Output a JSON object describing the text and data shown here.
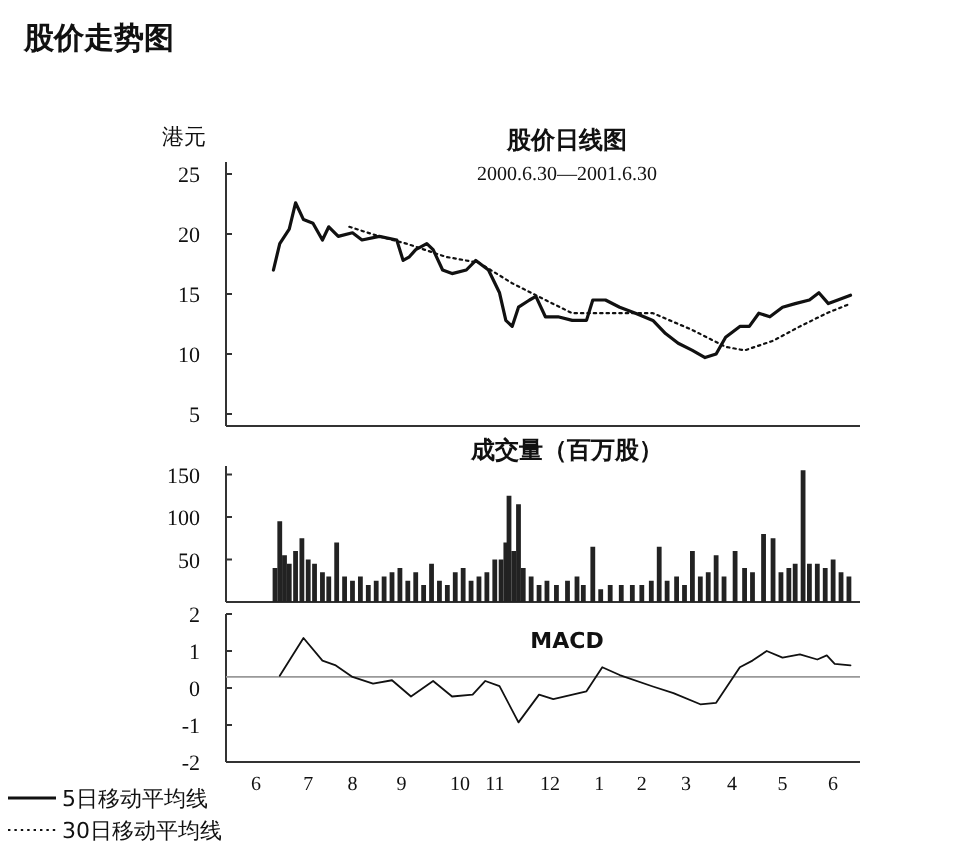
{
  "chart_data": [
    {
      "type": "line",
      "title": "股价日线图",
      "subtitle": "2000.6.30—2001.6.30",
      "ylabel": "港元",
      "annotations": [
        "股价走势图"
      ],
      "xlim": [
        "2000-05-31",
        "2001-07-06"
      ],
      "ylim": [
        4,
        26
      ],
      "yticks": [
        5,
        10,
        15,
        20,
        25
      ],
      "tick_labels": "y",
      "legend": "bottom left",
      "series": [
        {
          "name": "5日移动平均线",
          "color": "#111111",
          "line_style": "solid",
          "x": [
            "2000-06-30",
            "2000-07-04",
            "2000-07-10",
            "2000-07-14",
            "2000-07-19",
            "2000-07-25",
            "2000-07-31",
            "2000-08-04",
            "2000-08-10",
            "2000-08-19",
            "2000-08-25",
            "2000-09-05",
            "2000-09-16",
            "2000-09-20",
            "2000-09-24",
            "2000-09-28",
            "2000-10-05",
            "2000-10-09",
            "2000-10-15",
            "2000-10-21",
            "2000-10-30",
            "2000-11-05",
            "2000-11-13",
            "2000-11-20",
            "2000-11-24",
            "2000-11-28",
            "2000-12-02",
            "2000-12-09",
            "2000-12-13",
            "2000-12-19",
            "2000-12-27",
            "2001-01-05",
            "2001-01-14",
            "2001-01-18",
            "2001-01-26",
            "2001-02-04",
            "2001-02-14",
            "2001-02-25",
            "2001-03-05",
            "2001-03-13",
            "2001-03-22",
            "2001-03-30",
            "2001-04-06",
            "2001-04-12",
            "2001-04-21",
            "2001-04-27",
            "2001-05-03",
            "2001-05-10",
            "2001-05-18",
            "2001-05-26",
            "2001-06-04",
            "2001-06-10",
            "2001-06-16",
            "2001-06-22",
            "2001-06-30"
          ],
          "values": [
            17.0,
            19.2,
            20.4,
            22.6,
            21.2,
            20.9,
            19.5,
            20.6,
            19.8,
            20.1,
            19.5,
            19.8,
            19.5,
            17.8,
            18.1,
            18.7,
            19.2,
            18.7,
            17.0,
            16.7,
            17.0,
            17.8,
            17.0,
            15.1,
            12.8,
            12.3,
            13.9,
            14.5,
            14.8,
            13.1,
            13.1,
            12.8,
            12.8,
            14.5,
            14.5,
            13.9,
            13.4,
            12.8,
            11.7,
            10.9,
            10.3,
            9.7,
            10.0,
            11.4,
            12.3,
            12.3,
            13.4,
            13.1,
            13.9,
            14.2,
            14.5,
            15.1,
            14.2,
            14.5,
            14.9
          ]
        },
        {
          "name": "30日移动平均线",
          "color": "#111111",
          "line_style": "dotted",
          "x": [
            "2000-08-17",
            "2000-09-05",
            "2000-09-22",
            "2000-10-17",
            "2000-11-07",
            "2000-11-28",
            "2000-12-19",
            "2001-01-05",
            "2001-01-30",
            "2001-02-25",
            "2001-03-22",
            "2001-04-12",
            "2001-04-24",
            "2001-05-12",
            "2001-05-29",
            "2001-06-15",
            "2001-06-30"
          ],
          "values": [
            20.6,
            19.8,
            19.2,
            18.1,
            17.6,
            15.9,
            14.5,
            13.4,
            13.4,
            13.4,
            12.0,
            10.6,
            10.3,
            11.1,
            12.3,
            13.4,
            14.2
          ]
        }
      ]
    },
    {
      "type": "bar",
      "title": "成交量（百万股）",
      "xlim": [
        "2000-05-31",
        "2001-07-06"
      ],
      "ylim": [
        0,
        160
      ],
      "yticks": [
        50,
        100,
        150
      ],
      "tick_labels": "y",
      "series": [
        {
          "color": "#222222",
          "x": [
            "2000-07-01",
            "2000-07-04",
            "2000-07-07",
            "2000-07-10",
            "2000-07-14",
            "2000-07-18",
            "2000-07-22",
            "2000-07-26",
            "2000-07-31",
            "2000-08-04",
            "2000-08-09",
            "2000-08-14",
            "2000-08-19",
            "2000-08-24",
            "2000-08-29",
            "2000-09-03",
            "2000-09-08",
            "2000-09-13",
            "2000-09-18",
            "2000-09-23",
            "2000-09-28",
            "2000-10-03",
            "2000-10-08",
            "2000-10-13",
            "2000-10-18",
            "2000-10-23",
            "2000-10-28",
            "2000-11-02",
            "2000-11-07",
            "2000-11-12",
            "2000-11-17",
            "2000-11-21",
            "2000-11-24",
            "2000-11-26",
            "2000-11-29",
            "2000-12-02",
            "2000-12-05",
            "2000-12-10",
            "2000-12-15",
            "2000-12-20",
            "2000-12-26",
            "2001-01-02",
            "2001-01-08",
            "2001-01-12",
            "2001-01-18",
            "2001-01-23",
            "2001-01-29",
            "2001-02-05",
            "2001-02-12",
            "2001-02-18",
            "2001-02-24",
            "2001-03-01",
            "2001-03-06",
            "2001-03-12",
            "2001-03-17",
            "2001-03-22",
            "2001-03-27",
            "2001-04-01",
            "2001-04-06",
            "2001-04-11",
            "2001-04-18",
            "2001-04-24",
            "2001-04-29",
            "2001-05-06",
            "2001-05-12",
            "2001-05-17",
            "2001-05-22",
            "2001-05-26",
            "2001-05-31",
            "2001-06-04",
            "2001-06-09",
            "2001-06-14",
            "2001-06-19",
            "2001-06-24",
            "2001-06-29"
          ],
          "values": [
            40,
            95,
            55,
            45,
            60,
            75,
            50,
            45,
            35,
            30,
            70,
            30,
            25,
            30,
            20,
            25,
            30,
            35,
            40,
            25,
            35,
            20,
            45,
            25,
            20,
            35,
            40,
            25,
            30,
            35,
            50,
            50,
            70,
            125,
            60,
            115,
            40,
            30,
            20,
            25,
            20,
            25,
            30,
            20,
            65,
            15,
            20,
            20,
            20,
            20,
            25,
            65,
            25,
            30,
            20,
            60,
            30,
            35,
            55,
            30,
            60,
            40,
            35,
            80,
            75,
            35,
            40,
            45,
            155,
            45,
            45,
            40,
            50,
            35,
            30
          ]
        }
      ]
    },
    {
      "type": "line",
      "title": "MACD",
      "xlim": [
        "2000-05-31",
        "2001-07-06"
      ],
      "ylim": [
        -2,
        2
      ],
      "yticks": [
        -2,
        -1,
        0,
        1,
        2
      ],
      "xticks": [
        {
          "value": "2000-06-19",
          "label": "6"
        },
        {
          "value": "2000-07-22",
          "label": "7"
        },
        {
          "value": "2000-08-19",
          "label": "8"
        },
        {
          "value": "2000-09-19",
          "label": "9"
        },
        {
          "value": "2000-10-26",
          "label": "10"
        },
        {
          "value": "2000-11-17",
          "label": "11"
        },
        {
          "value": "2000-12-22",
          "label": "12"
        },
        {
          "value": "2001-01-22",
          "label": "1"
        },
        {
          "value": "2001-02-18",
          "label": "2"
        },
        {
          "value": "2001-03-18",
          "label": "3"
        },
        {
          "value": "2001-04-16",
          "label": "4"
        },
        {
          "value": "2001-05-18",
          "label": "5"
        },
        {
          "value": "2001-06-19",
          "label": "6"
        }
      ],
      "ref_lines": [
        {
          "axis": "y",
          "value": 0.3
        }
      ],
      "series": [
        {
          "color": "#111111",
          "line_style": "solid",
          "x": [
            "2000-07-04",
            "2000-07-19",
            "2000-07-31",
            "2000-08-08",
            "2000-08-19",
            "2000-09-01",
            "2000-09-13",
            "2000-09-25",
            "2000-10-09",
            "2000-10-21",
            "2000-11-03",
            "2000-11-11",
            "2000-11-20",
            "2000-12-02",
            "2000-12-15",
            "2000-12-24",
            "2001-01-14",
            "2001-01-24",
            "2001-02-04",
            "2001-02-25",
            "2001-03-10",
            "2001-03-27",
            "2001-04-06",
            "2001-04-21",
            "2001-04-29",
            "2001-05-08",
            "2001-05-18",
            "2001-05-29",
            "2001-06-09",
            "2001-06-15",
            "2001-06-20",
            "2001-06-30"
          ],
          "values": [
            0.33,
            1.35,
            0.74,
            0.62,
            0.3,
            0.12,
            0.21,
            -0.23,
            0.19,
            -0.23,
            -0.18,
            0.19,
            0.05,
            -0.93,
            -0.18,
            -0.3,
            -0.09,
            0.56,
            0.35,
            0.04,
            -0.14,
            -0.44,
            -0.4,
            0.56,
            0.74,
            1.0,
            0.82,
            0.91,
            0.77,
            0.88,
            0.65,
            0.61
          ]
        }
      ]
    }
  ]
}
